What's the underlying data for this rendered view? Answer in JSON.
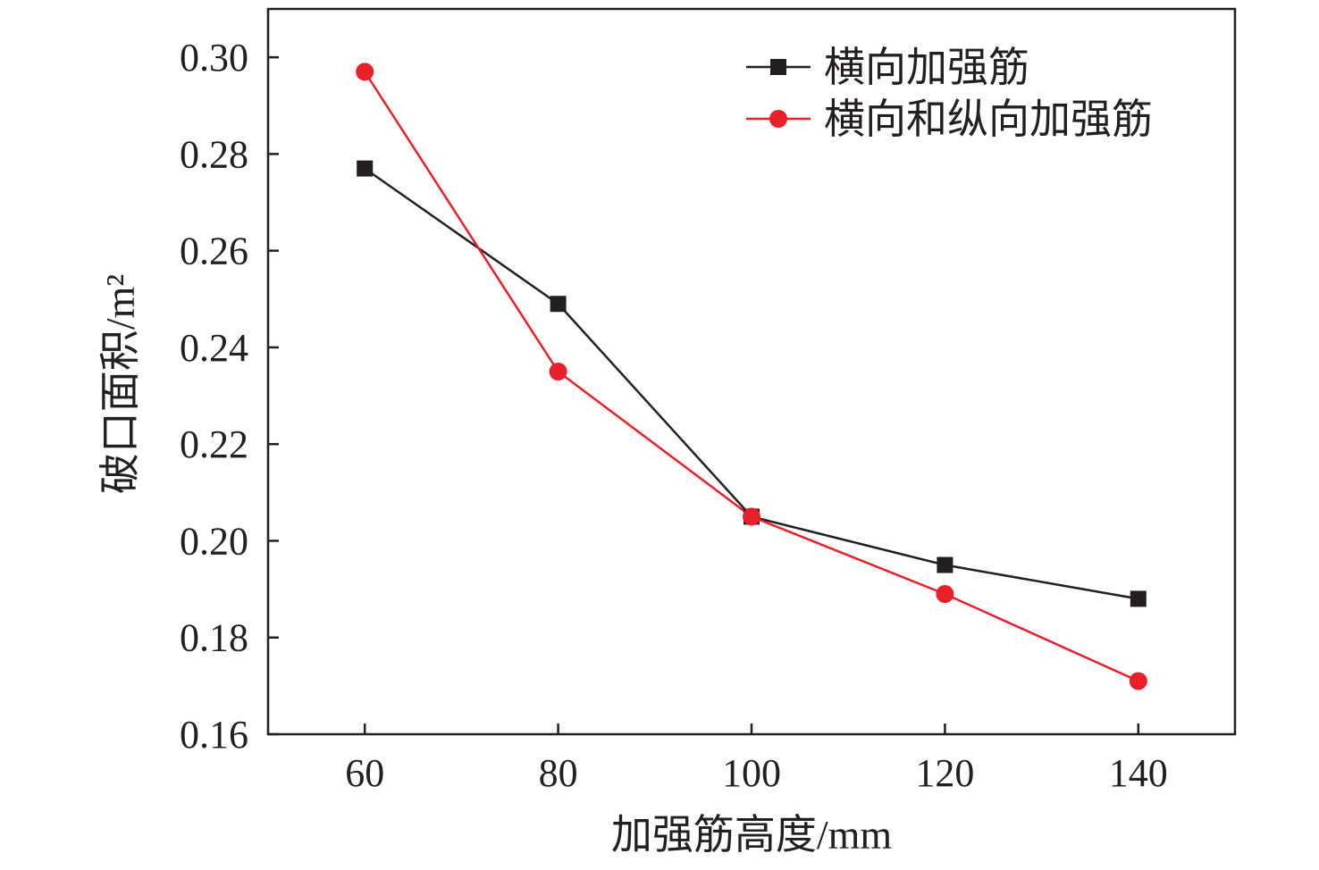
{
  "chart_data": {
    "type": "line",
    "xlabel": "加强筋高度/mm",
    "ylabel": "破口面积/m²",
    "x": [
      60,
      80,
      100,
      120,
      140
    ],
    "xticks": [
      "60",
      "80",
      "100",
      "120",
      "140"
    ],
    "yticks": [
      "0.16",
      "0.18",
      "0.20",
      "0.22",
      "0.24",
      "0.26",
      "0.28",
      "0.30"
    ],
    "xlim": [
      50,
      150
    ],
    "ylim": [
      0.16,
      0.31
    ],
    "grid": false,
    "legend_position": "top-right",
    "series": [
      {
        "name": "横向加强筋",
        "marker": "square",
        "color": "#231f20",
        "values": [
          0.277,
          0.249,
          0.205,
          0.195,
          0.188
        ]
      },
      {
        "name": "横向和纵向加强筋",
        "marker": "circle",
        "color": "#e8202a",
        "values": [
          0.297,
          0.235,
          0.205,
          0.189,
          0.171
        ]
      }
    ]
  }
}
